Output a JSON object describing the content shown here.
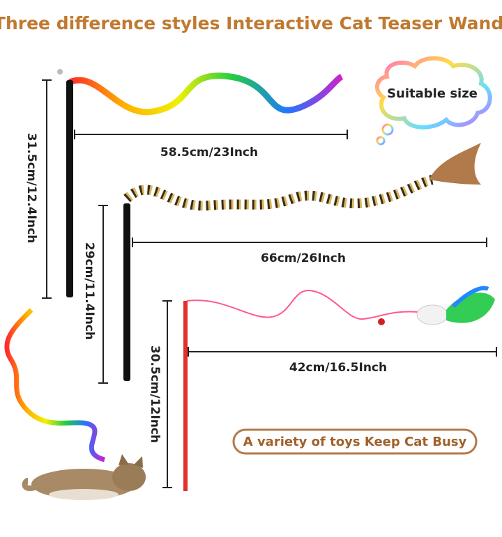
{
  "header": {
    "title": "Three difference styles Interactive Cat Teaser Wands"
  },
  "bubble": {
    "text": "Suitable size"
  },
  "wands": [
    {
      "width_label": "58.5cm/23Inch",
      "height_label": "31.5cm/12.4Inch"
    },
    {
      "width_label": "66cm/26Inch",
      "height_label": "29cm/11.4Inch"
    },
    {
      "width_label": "42cm/16.5Inch",
      "height_label": "30.5cm/12Inch"
    }
  ],
  "banner": {
    "text": "A variety of toys Keep Cat Busy"
  }
}
